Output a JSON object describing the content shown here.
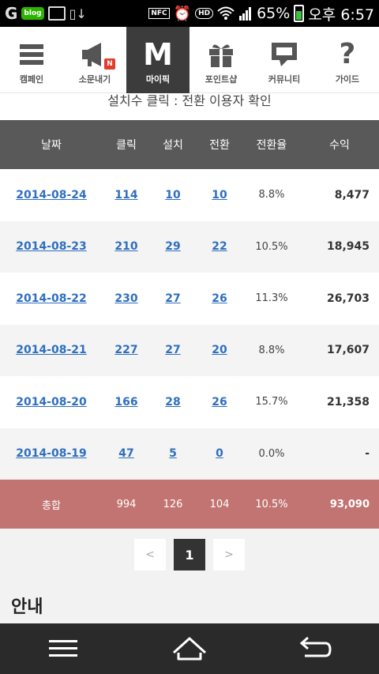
{
  "status_bar": {
    "left_icons": [
      "g-icon",
      "blog-icon",
      "image-icon",
      "download-icon"
    ],
    "blog_label": "blog",
    "nfc_label": "NFC",
    "hd_label": "HD",
    "battery": "65%",
    "time": "오후 6:57"
  },
  "nav": {
    "items": [
      {
        "label": "캠페인",
        "icon": "hamburger-icon"
      },
      {
        "label": "소문내기",
        "icon": "megaphone-icon",
        "badge": "N"
      },
      {
        "label": "마이픽",
        "icon": "m-icon",
        "glyph": "M",
        "active": true
      },
      {
        "label": "포인트샵",
        "icon": "gift-icon"
      },
      {
        "label": "커뮤니티",
        "icon": "chat-icon"
      },
      {
        "label": "가이드",
        "icon": "question-icon",
        "glyph": "?"
      }
    ]
  },
  "subheading": "설치수 클릭 : 전환 이용자 확인",
  "table": {
    "headers": {
      "date": "날짜",
      "click": "클릭",
      "install": "설치",
      "conversion": "전환",
      "rate": "전환율",
      "revenue": "수익"
    },
    "rows": [
      {
        "date": "2014-08-24",
        "click": "114",
        "install": "10",
        "conversion": "10",
        "rate": "8.8%",
        "revenue": "8,477"
      },
      {
        "date": "2014-08-23",
        "click": "210",
        "install": "29",
        "conversion": "22",
        "rate": "10.5%",
        "revenue": "18,945"
      },
      {
        "date": "2014-08-22",
        "click": "230",
        "install": "27",
        "conversion": "26",
        "rate": "11.3%",
        "revenue": "26,703"
      },
      {
        "date": "2014-08-21",
        "click": "227",
        "install": "27",
        "conversion": "20",
        "rate": "8.8%",
        "revenue": "17,607"
      },
      {
        "date": "2014-08-20",
        "click": "166",
        "install": "28",
        "conversion": "26",
        "rate": "15.7%",
        "revenue": "21,358"
      },
      {
        "date": "2014-08-19",
        "click": "47",
        "install": "5",
        "conversion": "0",
        "rate": "0.0%",
        "revenue": "-"
      }
    ],
    "total": {
      "label": "총합",
      "click": "994",
      "install": "126",
      "conversion": "104",
      "rate": "10.5%",
      "revenue": "93,090"
    }
  },
  "pagination": {
    "prev": "<",
    "current": "1",
    "next": ">"
  },
  "notice_title": "안내",
  "colors": {
    "header_bg": "#595959",
    "total_bg": "#c27472",
    "link": "#2f6fbf",
    "active_nav": "#3c3c3c"
  },
  "bottom_nav": [
    "menu-icon",
    "home-icon",
    "back-icon"
  ]
}
